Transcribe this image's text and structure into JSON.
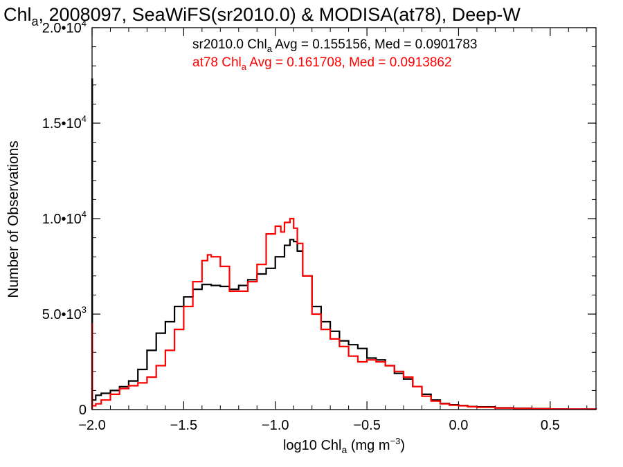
{
  "chart_data": {
    "type": "line",
    "title": {
      "pre": "Chl",
      "sub": "a",
      "post": ", 2008097, SeaWiFS(sr2010.0) & MODISA(at78), Deep-W"
    },
    "xlabel": {
      "pre": "log10 Chl",
      "sub": "a",
      "mid": " (mg m",
      "sup": "−3",
      "post": ")"
    },
    "ylabel": "Number of Observations",
    "xlim": [
      -2.0,
      0.75
    ],
    "ylim": [
      0,
      20000
    ],
    "x_ticks": [
      {
        "value": -2.0,
        "label": "−2.0"
      },
      {
        "value": -1.5,
        "label": "−1.5"
      },
      {
        "value": -1.0,
        "label": "−1.0"
      },
      {
        "value": -0.5,
        "label": "−0.5"
      },
      {
        "value": 0.0,
        "label": "0.0"
      },
      {
        "value": 0.5,
        "label": "0.5"
      }
    ],
    "y_ticks": [
      {
        "value": 0,
        "mant": "0",
        "exp": ""
      },
      {
        "value": 5000,
        "mant": "5.0•10",
        "exp": "3"
      },
      {
        "value": 10000,
        "mant": "1.0•10",
        "exp": "4"
      },
      {
        "value": 15000,
        "mant": "1.5•10",
        "exp": "4"
      },
      {
        "value": 20000,
        "mant": "2.0•10",
        "exp": "4"
      }
    ],
    "annotations": [
      {
        "pre": "sr2010.0 Chl",
        "sub": "a",
        "post": " Avg = 0.155156, Med = 0.0901783",
        "color": "#000000"
      },
      {
        "pre": "at78 Chl",
        "sub": "a",
        "post": " Avg = 0.161708, Med = 0.0913862",
        "color": "#ff0000"
      }
    ],
    "series": [
      {
        "color": "#000000",
        "x": [
          -2.0,
          -2.0,
          -1.999,
          -1.98,
          -1.95,
          -1.9,
          -1.85,
          -1.8,
          -1.75,
          -1.7,
          -1.65,
          -1.6,
          -1.55,
          -1.5,
          -1.45,
          -1.4,
          -1.35,
          -1.3,
          -1.25,
          -1.2,
          -1.15,
          -1.1,
          -1.05,
          -1.0,
          -0.95,
          -0.92,
          -0.9,
          -0.88,
          -0.85,
          -0.8,
          -0.75,
          -0.7,
          -0.65,
          -0.6,
          -0.55,
          -0.5,
          -0.45,
          -0.4,
          -0.35,
          -0.3,
          -0.25,
          -0.2,
          -0.15,
          -0.1,
          -0.05,
          0.0,
          0.05,
          0.1,
          0.2,
          0.3,
          0.4,
          0.5,
          0.6,
          0.75
        ],
        "y": [
          0,
          17300,
          500,
          750,
          850,
          1000,
          1200,
          1500,
          2100,
          3100,
          4000,
          4600,
          5400,
          5900,
          6300,
          6550,
          6500,
          6450,
          6300,
          6500,
          6800,
          7100,
          7400,
          8000,
          8600,
          8900,
          8800,
          8300,
          7000,
          5400,
          4600,
          4100,
          3600,
          3400,
          3200,
          2700,
          2600,
          2300,
          1900,
          1600,
          1200,
          800,
          500,
          320,
          250,
          210,
          160,
          140,
          90,
          70,
          50,
          30,
          20,
          10
        ]
      },
      {
        "color": "#ff0000",
        "x": [
          -2.0,
          -2.0,
          -1.999,
          -1.98,
          -1.95,
          -1.9,
          -1.85,
          -1.8,
          -1.75,
          -1.7,
          -1.65,
          -1.6,
          -1.55,
          -1.5,
          -1.45,
          -1.4,
          -1.37,
          -1.35,
          -1.3,
          -1.25,
          -1.2,
          -1.15,
          -1.1,
          -1.05,
          -1.0,
          -0.97,
          -0.95,
          -0.92,
          -0.9,
          -0.88,
          -0.85,
          -0.8,
          -0.75,
          -0.7,
          -0.65,
          -0.6,
          -0.55,
          -0.5,
          -0.45,
          -0.4,
          -0.35,
          -0.3,
          -0.25,
          -0.2,
          -0.15,
          -0.1,
          -0.05,
          0.0,
          0.05,
          0.1,
          0.2,
          0.3,
          0.4,
          0.5,
          0.6,
          0.75
        ],
        "y": [
          0,
          4500,
          200,
          300,
          500,
          800,
          1100,
          1250,
          1400,
          1700,
          2300,
          3100,
          4200,
          5400,
          6700,
          7800,
          8100,
          8000,
          7500,
          6200,
          6200,
          6700,
          7600,
          9200,
          9600,
          9300,
          9800,
          10000,
          9500,
          8700,
          7000,
          5000,
          4200,
          3700,
          3300,
          2800,
          2500,
          2600,
          2500,
          2300,
          2000,
          1700,
          1200,
          700,
          450,
          300,
          230,
          200,
          150,
          120,
          80,
          60,
          40,
          30,
          20,
          10
        ]
      }
    ]
  }
}
